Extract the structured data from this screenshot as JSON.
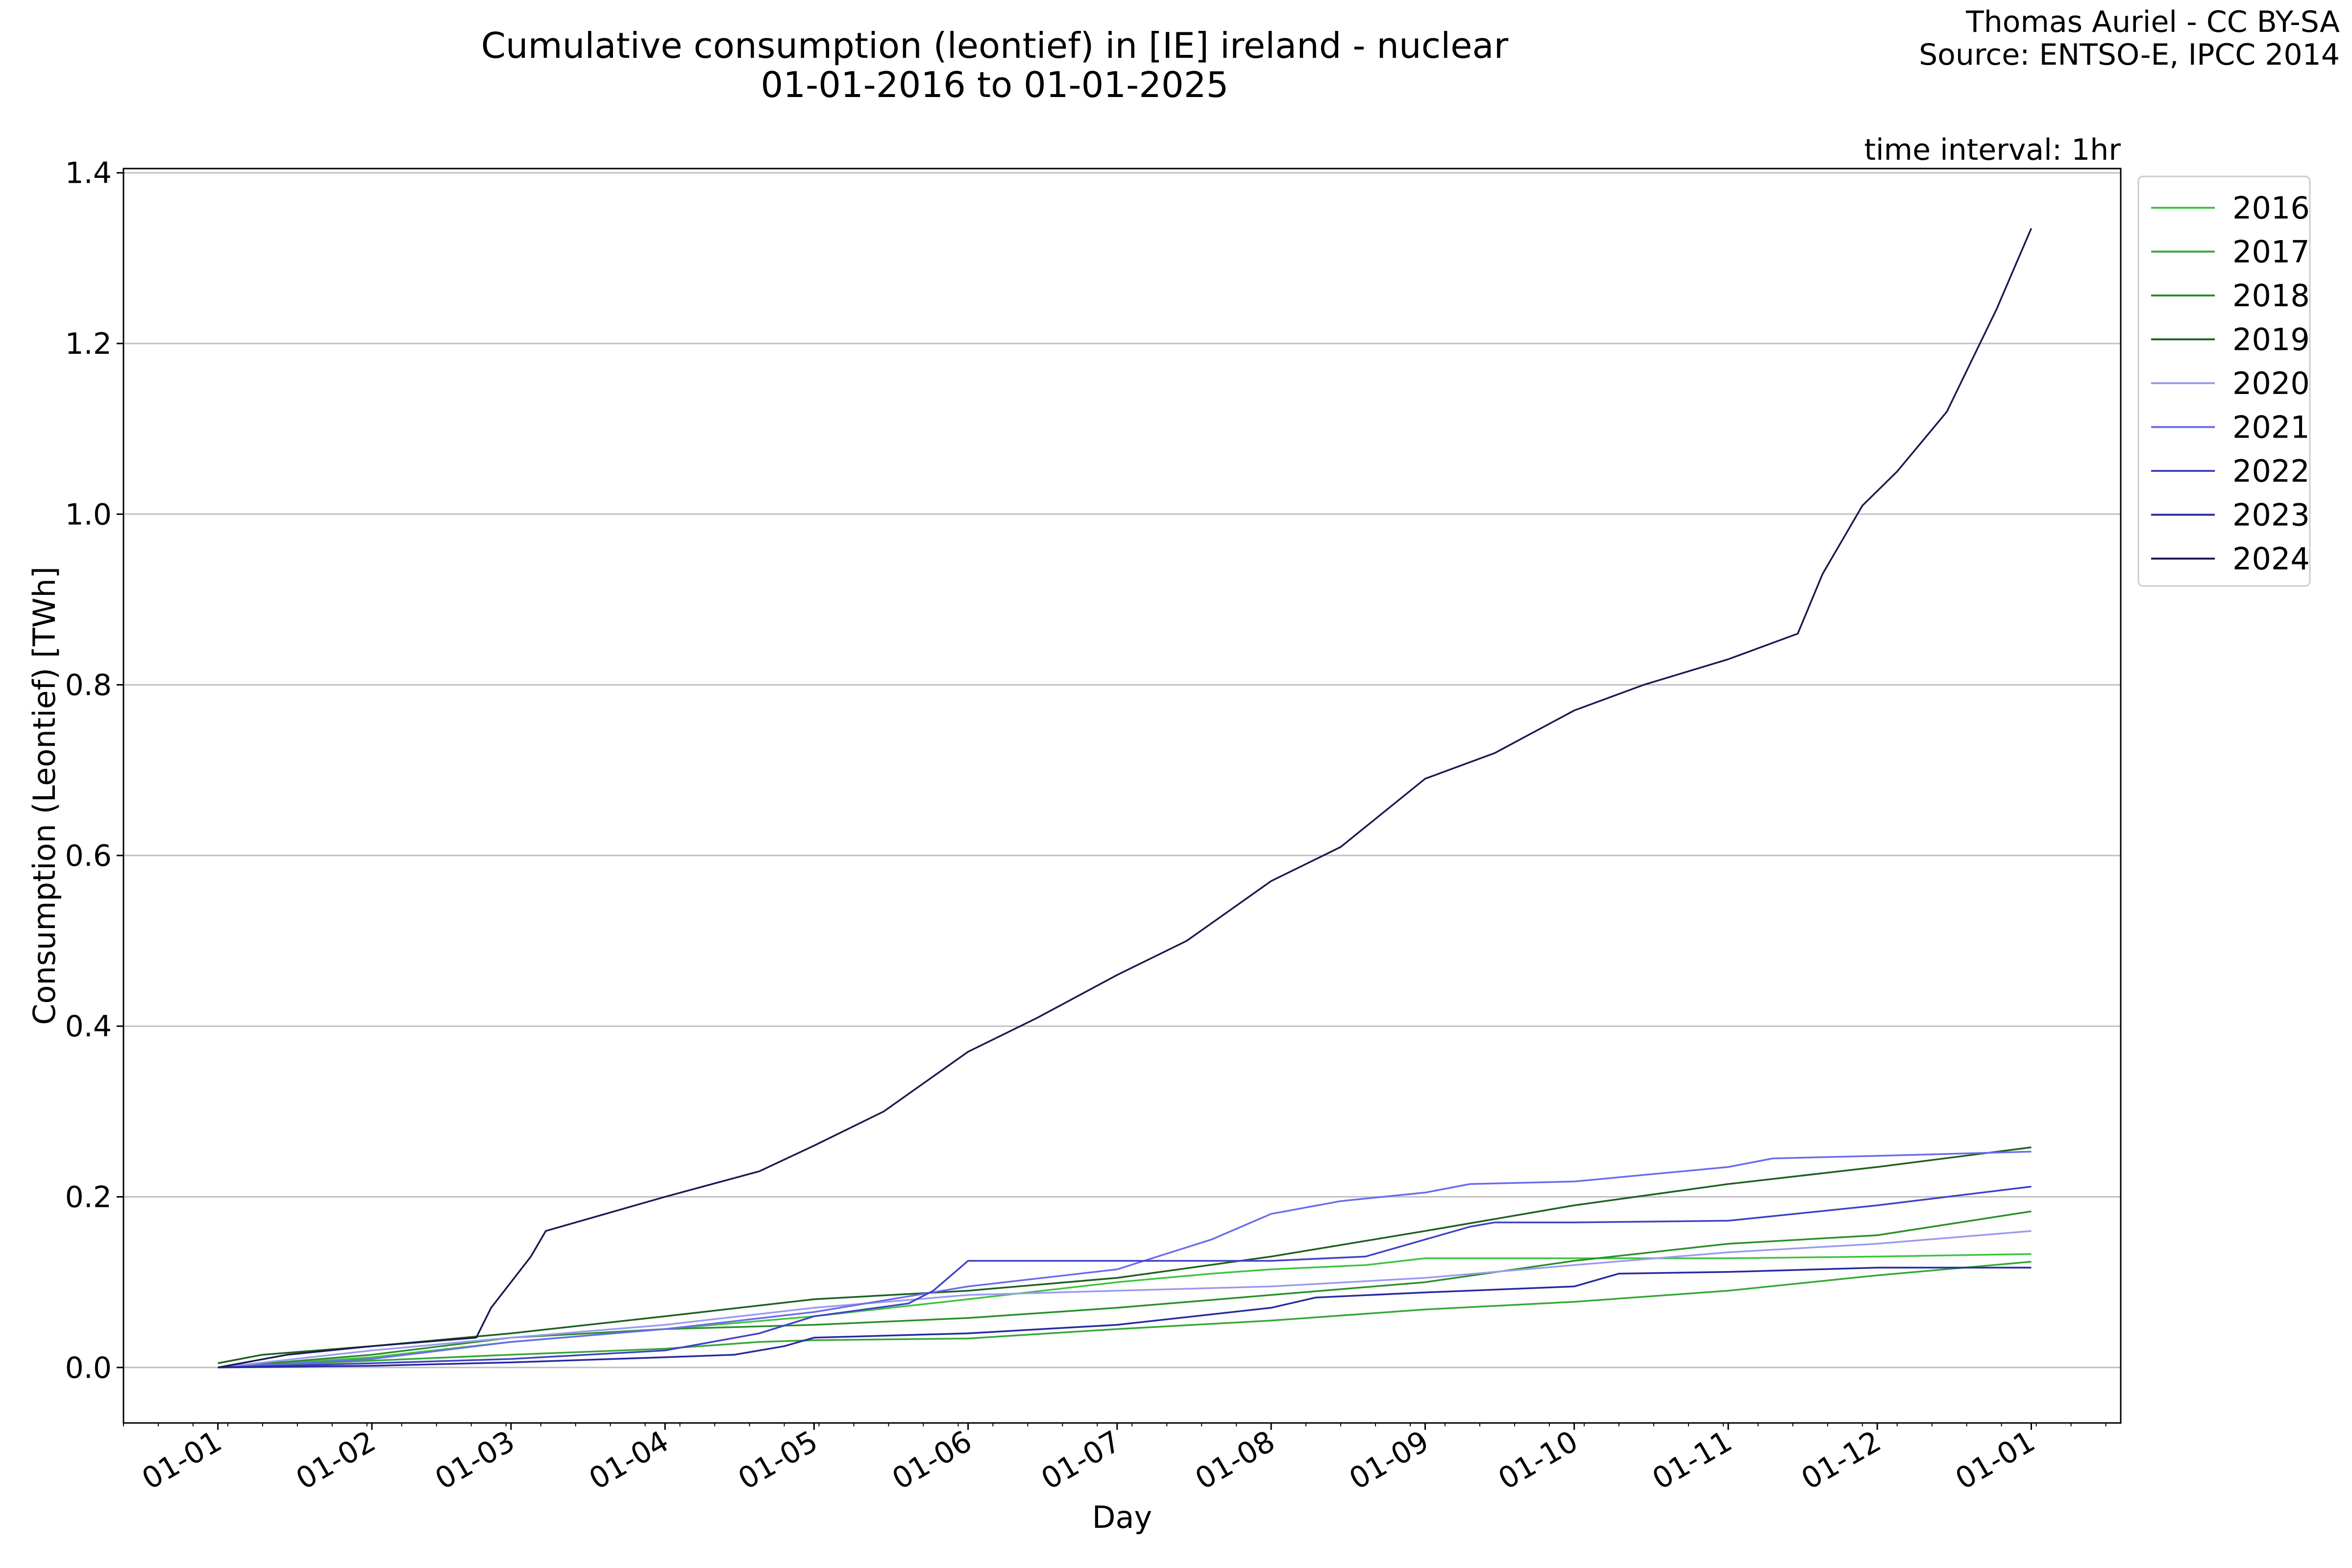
{
  "chart_data": {
    "type": "line",
    "title": "Cumulative consumption (leontief) in [IE] ireland - nuclear",
    "subtitle": "01-01-2016 to 01-01-2025",
    "credit_line1": "Thomas Auriel - CC BY-SA",
    "credit_line2": "Source: ENTSO-E, IPCC 2014",
    "interval_note": "time interval: 1hr",
    "xlabel": "Day",
    "ylabel": "Consumption (Leontief) [TWh]",
    "ylim": [
      -0.065,
      1.405
    ],
    "xlim": [
      "2024-12-13",
      "2026-01-19"
    ],
    "yticks": [
      0.0,
      0.2,
      0.4,
      0.6,
      0.8,
      1.0,
      1.2,
      1.4
    ],
    "ytick_labels": [
      "0.0",
      "0.2",
      "0.4",
      "0.6",
      "0.8",
      "1.0",
      "1.2",
      "1.4"
    ],
    "xticks": [
      "2025-01-01",
      "2025-02-01",
      "2025-03-01",
      "2025-04-01",
      "2025-05-01",
      "2025-06-01",
      "2025-07-01",
      "2025-08-01",
      "2025-09-01",
      "2025-10-01",
      "2025-11-01",
      "2025-12-01",
      "2026-01-01"
    ],
    "xtick_labels": [
      "01-01",
      "01-02",
      "01-03",
      "01-04",
      "01-05",
      "01-06",
      "01-07",
      "01-08",
      "01-09",
      "01-10",
      "01-11",
      "01-12",
      "01-01"
    ],
    "grid": "horizontal",
    "legend_position": "outside-right",
    "series": [
      {
        "name": "2016",
        "color": "#3ec43e",
        "points": [
          [
            "2025-01-01",
            0.0
          ],
          [
            "2025-02-01",
            0.012
          ],
          [
            "2025-03-01",
            0.03
          ],
          [
            "2025-04-01",
            0.045
          ],
          [
            "2025-05-01",
            0.06
          ],
          [
            "2025-06-01",
            0.08
          ],
          [
            "2025-07-01",
            0.1
          ],
          [
            "2025-07-20",
            0.11
          ],
          [
            "2025-08-01",
            0.115
          ],
          [
            "2025-08-20",
            0.12
          ],
          [
            "2025-09-01",
            0.128
          ],
          [
            "2025-10-01",
            0.128
          ],
          [
            "2025-11-01",
            0.128
          ],
          [
            "2025-12-01",
            0.13
          ],
          [
            "2026-01-01",
            0.133
          ]
        ]
      },
      {
        "name": "2017",
        "color": "#35a835",
        "points": [
          [
            "2025-01-01",
            0.0
          ],
          [
            "2025-02-01",
            0.008
          ],
          [
            "2025-03-01",
            0.015
          ],
          [
            "2025-04-01",
            0.022
          ],
          [
            "2025-04-20",
            0.03
          ],
          [
            "2025-05-01",
            0.032
          ],
          [
            "2025-06-01",
            0.034
          ],
          [
            "2025-07-01",
            0.045
          ],
          [
            "2025-08-01",
            0.055
          ],
          [
            "2025-09-01",
            0.068
          ],
          [
            "2025-10-01",
            0.077
          ],
          [
            "2025-11-01",
            0.09
          ],
          [
            "2025-12-01",
            0.108
          ],
          [
            "2026-01-01",
            0.124
          ]
        ]
      },
      {
        "name": "2018",
        "color": "#2a8f2a",
        "points": [
          [
            "2025-01-01",
            0.0
          ],
          [
            "2025-02-01",
            0.015
          ],
          [
            "2025-03-01",
            0.035
          ],
          [
            "2025-04-01",
            0.045
          ],
          [
            "2025-05-01",
            0.05
          ],
          [
            "2025-06-01",
            0.058
          ],
          [
            "2025-07-01",
            0.07
          ],
          [
            "2025-08-01",
            0.085
          ],
          [
            "2025-09-01",
            0.1
          ],
          [
            "2025-10-01",
            0.125
          ],
          [
            "2025-11-01",
            0.145
          ],
          [
            "2025-12-01",
            0.155
          ],
          [
            "2026-01-01",
            0.183
          ]
        ]
      },
      {
        "name": "2019",
        "color": "#1f5f1f",
        "points": [
          [
            "2025-01-01",
            0.005
          ],
          [
            "2025-01-10",
            0.015
          ],
          [
            "2025-02-01",
            0.025
          ],
          [
            "2025-03-01",
            0.04
          ],
          [
            "2025-04-01",
            0.06
          ],
          [
            "2025-05-01",
            0.08
          ],
          [
            "2025-06-01",
            0.09
          ],
          [
            "2025-07-01",
            0.105
          ],
          [
            "2025-08-01",
            0.13
          ],
          [
            "2025-09-01",
            0.16
          ],
          [
            "2025-10-01",
            0.19
          ],
          [
            "2025-11-01",
            0.215
          ],
          [
            "2025-12-01",
            0.235
          ],
          [
            "2026-01-01",
            0.258
          ]
        ]
      },
      {
        "name": "2020",
        "color": "#9a9af0",
        "points": [
          [
            "2025-01-01",
            0.0
          ],
          [
            "2025-02-01",
            0.02
          ],
          [
            "2025-03-01",
            0.035
          ],
          [
            "2025-04-01",
            0.05
          ],
          [
            "2025-05-01",
            0.07
          ],
          [
            "2025-06-01",
            0.085
          ],
          [
            "2025-07-01",
            0.09
          ],
          [
            "2025-08-01",
            0.095
          ],
          [
            "2025-09-01",
            0.105
          ],
          [
            "2025-10-01",
            0.12
          ],
          [
            "2025-11-01",
            0.135
          ],
          [
            "2025-12-01",
            0.145
          ],
          [
            "2026-01-01",
            0.16
          ]
        ]
      },
      {
        "name": "2021",
        "color": "#6a6aee",
        "points": [
          [
            "2025-01-01",
            0.0
          ],
          [
            "2025-02-01",
            0.01
          ],
          [
            "2025-03-01",
            0.03
          ],
          [
            "2025-04-01",
            0.045
          ],
          [
            "2025-05-01",
            0.065
          ],
          [
            "2025-06-01",
            0.095
          ],
          [
            "2025-07-01",
            0.115
          ],
          [
            "2025-07-20",
            0.15
          ],
          [
            "2025-08-01",
            0.18
          ],
          [
            "2025-08-15",
            0.195
          ],
          [
            "2025-09-01",
            0.205
          ],
          [
            "2025-09-10",
            0.215
          ],
          [
            "2025-10-01",
            0.218
          ],
          [
            "2025-11-01",
            0.235
          ],
          [
            "2025-11-10",
            0.245
          ],
          [
            "2025-12-01",
            0.248
          ],
          [
            "2026-01-01",
            0.253
          ]
        ]
      },
      {
        "name": "2022",
        "color": "#4040c8",
        "points": [
          [
            "2025-01-01",
            0.0
          ],
          [
            "2025-02-01",
            0.005
          ],
          [
            "2025-03-01",
            0.01
          ],
          [
            "2025-04-01",
            0.02
          ],
          [
            "2025-04-20",
            0.04
          ],
          [
            "2025-05-01",
            0.06
          ],
          [
            "2025-05-20",
            0.075
          ],
          [
            "2025-05-25",
            0.09
          ],
          [
            "2025-06-01",
            0.125
          ],
          [
            "2025-07-01",
            0.125
          ],
          [
            "2025-08-01",
            0.125
          ],
          [
            "2025-08-20",
            0.13
          ],
          [
            "2025-09-01",
            0.15
          ],
          [
            "2025-09-10",
            0.165
          ],
          [
            "2025-09-15",
            0.17
          ],
          [
            "2025-10-01",
            0.17
          ],
          [
            "2025-11-01",
            0.172
          ],
          [
            "2025-12-01",
            0.19
          ],
          [
            "2026-01-01",
            0.212
          ]
        ]
      },
      {
        "name": "2023",
        "color": "#2828a0",
        "points": [
          [
            "2025-01-01",
            0.0
          ],
          [
            "2025-02-01",
            0.002
          ],
          [
            "2025-03-01",
            0.006
          ],
          [
            "2025-04-01",
            0.012
          ],
          [
            "2025-04-15",
            0.015
          ],
          [
            "2025-04-25",
            0.025
          ],
          [
            "2025-05-01",
            0.035
          ],
          [
            "2025-06-01",
            0.04
          ],
          [
            "2025-07-01",
            0.05
          ],
          [
            "2025-08-01",
            0.07
          ],
          [
            "2025-08-10",
            0.082
          ],
          [
            "2025-09-01",
            0.088
          ],
          [
            "2025-10-01",
            0.095
          ],
          [
            "2025-10-10",
            0.11
          ],
          [
            "2025-11-01",
            0.112
          ],
          [
            "2025-12-01",
            0.117
          ],
          [
            "2026-01-01",
            0.117
          ]
        ]
      },
      {
        "name": "2024",
        "color": "#1a1a50",
        "points": [
          [
            "2025-01-01",
            0.0
          ],
          [
            "2025-01-15",
            0.015
          ],
          [
            "2025-02-01",
            0.025
          ],
          [
            "2025-02-22",
            0.035
          ],
          [
            "2025-02-25",
            0.07
          ],
          [
            "2025-03-05",
            0.13
          ],
          [
            "2025-03-08",
            0.16
          ],
          [
            "2025-04-01",
            0.2
          ],
          [
            "2025-04-20",
            0.23
          ],
          [
            "2025-05-01",
            0.26
          ],
          [
            "2025-05-15",
            0.3
          ],
          [
            "2025-06-01",
            0.37
          ],
          [
            "2025-06-15",
            0.41
          ],
          [
            "2025-07-01",
            0.46
          ],
          [
            "2025-07-15",
            0.5
          ],
          [
            "2025-08-01",
            0.57
          ],
          [
            "2025-08-15",
            0.61
          ],
          [
            "2025-09-01",
            0.69
          ],
          [
            "2025-09-15",
            0.72
          ],
          [
            "2025-10-01",
            0.77
          ],
          [
            "2025-10-15",
            0.8
          ],
          [
            "2025-11-01",
            0.83
          ],
          [
            "2025-11-15",
            0.86
          ],
          [
            "2025-11-20",
            0.93
          ],
          [
            "2025-11-28",
            1.01
          ],
          [
            "2025-12-05",
            1.05
          ],
          [
            "2025-12-15",
            1.12
          ],
          [
            "2025-12-25",
            1.24
          ],
          [
            "2026-01-01",
            1.335
          ]
        ]
      }
    ]
  }
}
